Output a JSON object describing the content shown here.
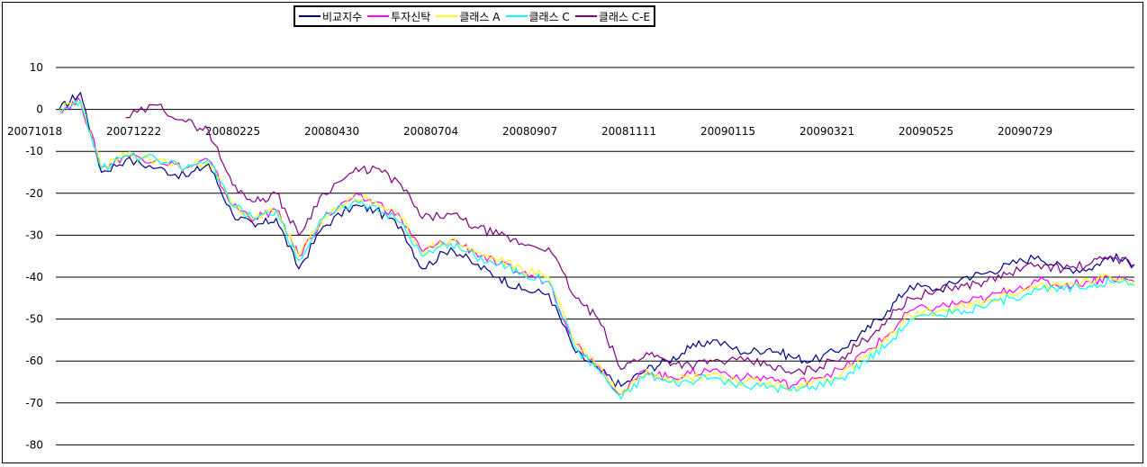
{
  "chart_data": {
    "type": "line",
    "title": "",
    "xlabel": "",
    "ylabel": "",
    "ylim": [
      -80,
      10
    ],
    "yticks": [
      10,
      0,
      -10,
      -20,
      -30,
      -40,
      -50,
      -60,
      -70,
      -80
    ],
    "xticks": [
      "20071018",
      "20071222",
      "20080225",
      "20080430",
      "20080704",
      "20080907",
      "20081111",
      "20090115",
      "20090321",
      "20090525",
      "20090729"
    ],
    "grid": true,
    "legend_position": "top",
    "x": [
      "2007-10-18",
      "2007-11-01",
      "2007-11-15",
      "2007-12-01",
      "2007-12-22",
      "2008-01-10",
      "2008-01-25",
      "2008-02-10",
      "2008-02-25",
      "2008-03-10",
      "2008-03-25",
      "2008-04-10",
      "2008-04-30",
      "2008-05-15",
      "2008-06-01",
      "2008-06-15",
      "2008-07-04",
      "2008-07-20",
      "2008-08-05",
      "2008-08-20",
      "2008-09-07",
      "2008-09-25",
      "2008-10-10",
      "2008-10-25",
      "2008-11-11",
      "2008-11-25",
      "2008-12-10",
      "2008-12-25",
      "2009-01-15",
      "2009-02-01",
      "2009-02-15",
      "2009-03-01",
      "2009-03-21",
      "2009-04-05",
      "2009-04-20",
      "2009-05-05",
      "2009-05-25",
      "2009-06-10",
      "2009-06-25",
      "2009-07-10",
      "2009-07-29",
      "2009-08-15",
      "2009-09-01",
      "2009-09-15",
      "2009-10-01"
    ],
    "series": [
      {
        "name": "비교지수",
        "color": "#000080",
        "values": [
          0,
          4,
          -15,
          -12,
          -14,
          -16,
          -13,
          -25,
          -28,
          -26,
          -38,
          -28,
          -23,
          -24,
          -28,
          -38,
          -33,
          -37,
          -40,
          -43,
          -44,
          -58,
          -62,
          -66,
          -62,
          -60,
          -57,
          -55,
          -58,
          -57,
          -59,
          -60,
          -57,
          -53,
          -48,
          -42,
          -43,
          -40,
          -39,
          -37,
          -35,
          -38,
          -38,
          -35,
          -37
        ]
      },
      {
        "name": "투자신탁",
        "color": "#FF00FF",
        "values": [
          0,
          2,
          -14,
          -11,
          -12,
          -14,
          -12,
          -23,
          -26,
          -24,
          -35,
          -26,
          -21,
          -22,
          -26,
          -34,
          -31,
          -34,
          -37,
          -39,
          -41,
          -56,
          -61,
          -68,
          -62,
          -64,
          -63,
          -62,
          -64,
          -64,
          -66,
          -64,
          -62,
          -58,
          -54,
          -48,
          -47,
          -46,
          -45,
          -43,
          -41,
          -42,
          -41,
          -40,
          -41
        ]
      },
      {
        "name": "클래스 A",
        "color": "#FFFF00",
        "values": [
          0,
          2,
          -14,
          -11,
          -12,
          -14,
          -12,
          -23,
          -26,
          -24,
          -35,
          -26,
          -21,
          -22,
          -26,
          -34,
          -31,
          -34,
          -36,
          -38,
          -40,
          -56,
          -61,
          -68,
          -62,
          -64,
          -64,
          -63,
          -65,
          -65,
          -67,
          -65,
          -63,
          -59,
          -55,
          -49,
          -48,
          -47,
          -46,
          -44,
          -42,
          -42,
          -41,
          -40,
          -41
        ]
      },
      {
        "name": "클래스 C",
        "color": "#00FFFF",
        "values": [
          0,
          2,
          -14,
          -11,
          -12,
          -14,
          -12,
          -23,
          -26,
          -24,
          -36,
          -26,
          -22,
          -23,
          -27,
          -35,
          -32,
          -35,
          -37,
          -39,
          -41,
          -57,
          -62,
          -69,
          -63,
          -65,
          -65,
          -64,
          -66,
          -66,
          -67,
          -66,
          -64,
          -60,
          -56,
          -50,
          -49,
          -48,
          -47,
          -45,
          -43,
          -43,
          -42,
          -41,
          -42
        ]
      },
      {
        "name": "클래스 C-E",
        "color": "#800080",
        "values": [
          null,
          null,
          null,
          -2,
          1,
          -3,
          -5,
          -18,
          -22,
          -20,
          -30,
          -20,
          -15,
          -14,
          -18,
          -26,
          -25,
          -28,
          -30,
          -32,
          -33,
          -45,
          -50,
          -62,
          -58,
          -60,
          -61,
          -60,
          -60,
          -61,
          -63,
          -62,
          -59,
          -55,
          -50,
          -45,
          -43,
          -42,
          -41,
          -39,
          -37,
          -38,
          -37,
          -35,
          -37
        ]
      }
    ]
  }
}
